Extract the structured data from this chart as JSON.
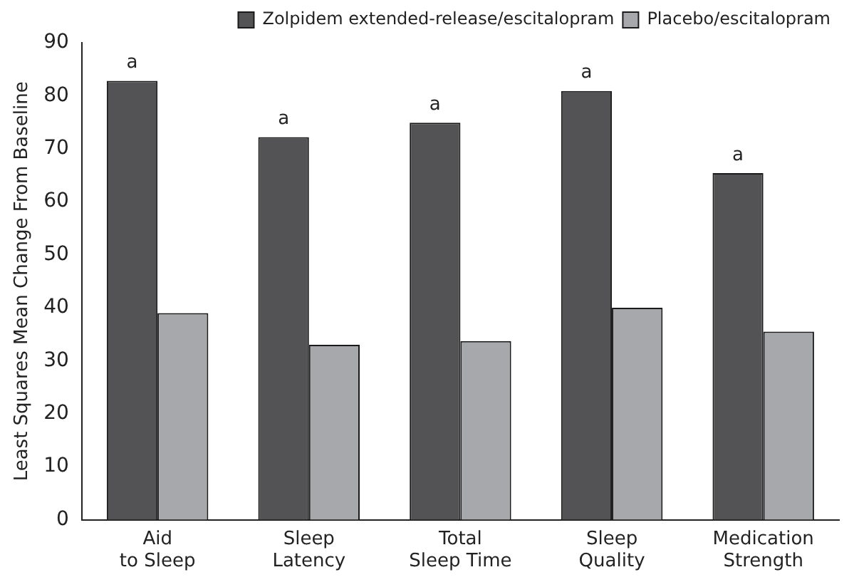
{
  "chart_data": {
    "type": "bar",
    "ylabel": "Least Squares Mean Change From Baseline",
    "categories": [
      "Aid\nto Sleep",
      "Sleep\nLatency",
      "Total\nSleep Time",
      "Sleep\nQuality",
      "Medication\nStrength"
    ],
    "series": [
      {
        "name": "Zolpidem extended-release/escitalopram",
        "color": "#535355",
        "values": [
          82.8,
          72.2,
          74.9,
          80.9,
          65.4
        ]
      },
      {
        "name": "Placebo/escitalopram",
        "color": "#a7a8ab",
        "values": [
          39,
          33,
          33.7,
          40,
          35.5
        ]
      }
    ],
    "ylim": [
      0,
      90
    ],
    "yticks": [
      0,
      10,
      20,
      30,
      40,
      50,
      60,
      70,
      80,
      90
    ],
    "grid": false,
    "legend": "top right",
    "annotations": [
      {
        "text": "a",
        "x": "Aid\nto Sleep",
        "y": 82.8
      },
      {
        "text": "a",
        "x": "Sleep\nLatency",
        "y": 72.2
      },
      {
        "text": "a",
        "x": "Total\nSleep Time",
        "y": 74.9
      },
      {
        "text": "a",
        "x": "Sleep\nQuality",
        "y": 80.9
      },
      {
        "text": "a",
        "x": "Medication\nStrength",
        "y": 65.4
      }
    ]
  }
}
